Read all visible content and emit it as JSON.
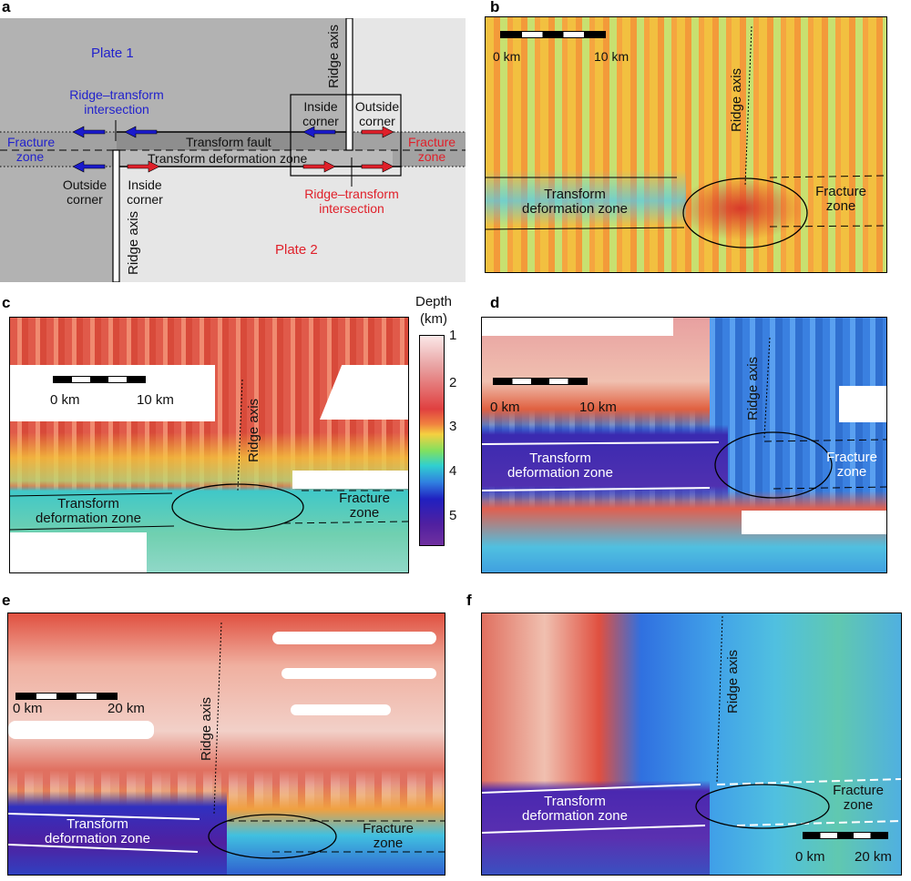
{
  "panels": {
    "a": {
      "label": "a",
      "plate1": "Plate 1",
      "plate2": "Plate 2",
      "ridge_axis": "Ridge axis",
      "rti_blue": [
        "Ridge–transform",
        "intersection"
      ],
      "rti_red": [
        "Ridge–transform",
        "intersection"
      ],
      "fracture_zone": [
        "Fracture",
        "zone"
      ],
      "transform_fault": "Transform fault",
      "tdz": "Transform deformation zone",
      "inside_corner": [
        "Inside",
        "corner"
      ],
      "outside_corner": [
        "Outside",
        "corner"
      ]
    },
    "b": {
      "label": "b",
      "scale": [
        "0 km",
        "10 km"
      ],
      "ridge_axis": "Ridge axis",
      "tdz": [
        "Transform",
        "deformation zone"
      ],
      "fz": [
        "Fracture",
        "zone"
      ]
    },
    "c": {
      "label": "c",
      "scale": [
        "0 km",
        "10 km"
      ],
      "ridge_axis": "Ridge axis",
      "tdz": [
        "Transform",
        "deformation zone"
      ],
      "fz": [
        "Fracture",
        "zone"
      ]
    },
    "d": {
      "label": "d",
      "scale": [
        "0 km",
        "10 km"
      ],
      "ridge_axis": "Ridge axis",
      "tdz": [
        "Transform",
        "deformation zone"
      ],
      "fz": [
        "Fracture",
        "zone"
      ]
    },
    "e": {
      "label": "e",
      "scale": [
        "0 km",
        "20 km"
      ],
      "ridge_axis": "Ridge axis",
      "tdz": [
        "Transform",
        "deformation zone"
      ],
      "fz": [
        "Fracture",
        "zone"
      ]
    },
    "f": {
      "label": "f",
      "scale": [
        "0 km",
        "20 km"
      ],
      "ridge_axis": "Ridge axis",
      "tdz": [
        "Transform",
        "deformation zone"
      ],
      "fz": [
        "Fracture",
        "zone"
      ]
    }
  },
  "colorbar": {
    "title": [
      "Depth",
      "(km)"
    ],
    "ticks": [
      "1",
      "2",
      "3",
      "4",
      "5"
    ]
  },
  "colors": {
    "blue": "#2222cc",
    "red": "#e0202a"
  }
}
